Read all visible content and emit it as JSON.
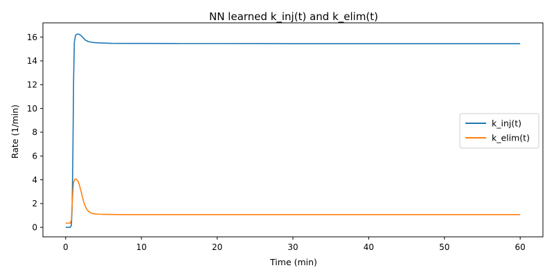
{
  "chart_data": {
    "type": "line",
    "title": "NN learned k_inj(t) and k_elim(t)",
    "xlabel": "Time (min)",
    "ylabel": "Rate (1/min)",
    "xlim": [
      -3,
      63
    ],
    "ylim": [
      -0.8,
      17.2
    ],
    "xticks": [
      0,
      10,
      20,
      30,
      40,
      50,
      60
    ],
    "yticks": [
      0,
      2,
      4,
      6,
      8,
      10,
      12,
      14,
      16
    ],
    "grid": false,
    "legend_position": "center-right",
    "series": [
      {
        "name": "k_inj(t)",
        "color": "#1f77b4",
        "x": [
          0,
          0.3,
          0.6,
          0.75,
          0.85,
          0.95,
          1.05,
          1.15,
          1.3,
          1.5,
          1.75,
          2.0,
          2.3,
          2.6,
          3.0,
          3.5,
          4.0,
          5.0,
          6.0,
          8.0,
          10.0,
          15.0,
          20.0,
          30.0,
          40.0,
          50.0,
          60.0
        ],
        "y": [
          0.0,
          0.0,
          0.0,
          0.15,
          1.5,
          6.0,
          12.5,
          15.6,
          16.15,
          16.25,
          16.25,
          16.15,
          15.95,
          15.75,
          15.62,
          15.56,
          15.53,
          15.5,
          15.48,
          15.47,
          15.47,
          15.46,
          15.46,
          15.45,
          15.45,
          15.45,
          15.45
        ]
      },
      {
        "name": "k_elim(t)",
        "color": "#ff7f0e",
        "x": [
          0,
          0.3,
          0.6,
          0.75,
          0.85,
          0.95,
          1.05,
          1.2,
          1.4,
          1.6,
          1.8,
          2.0,
          2.2,
          2.4,
          2.6,
          2.8,
          3.0,
          3.3,
          3.6,
          4.0,
          4.5,
          5.0,
          6.0,
          8.0,
          10.0,
          20.0,
          30.0,
          40.0,
          50.0,
          60.0
        ],
        "y": [
          0.35,
          0.35,
          0.35,
          0.6,
          1.8,
          3.0,
          3.8,
          4.05,
          4.05,
          3.9,
          3.6,
          3.1,
          2.6,
          2.1,
          1.75,
          1.5,
          1.35,
          1.22,
          1.16,
          1.12,
          1.1,
          1.09,
          1.08,
          1.07,
          1.07,
          1.07,
          1.07,
          1.07,
          1.07,
          1.07
        ]
      }
    ]
  }
}
